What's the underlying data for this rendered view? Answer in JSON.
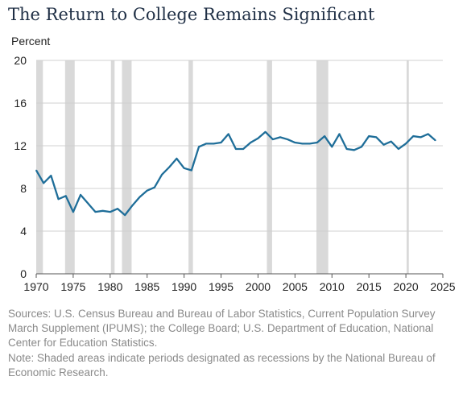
{
  "chart_data": {
    "type": "line",
    "title": "The Return to College Remains Significant",
    "ylabel": "Percent",
    "xlabel": "",
    "xlim": [
      1970,
      2025
    ],
    "ylim": [
      0,
      20
    ],
    "xticks": [
      1970,
      1975,
      1980,
      1985,
      1990,
      1995,
      2000,
      2005,
      2010,
      2015,
      2020,
      2025
    ],
    "yticks": [
      0,
      4,
      8,
      12,
      16,
      20
    ],
    "grid": "horizontal",
    "line_color": "#1f6e99",
    "recession_color": "#d9d9d9",
    "recessions": [
      [
        1970,
        1970.9
      ],
      [
        1973.9,
        1975.2
      ],
      [
        1980.1,
        1980.6
      ],
      [
        1981.6,
        1982.9
      ],
      [
        1990.6,
        1991.2
      ],
      [
        2001.2,
        2001.9
      ],
      [
        2007.9,
        2009.5
      ],
      [
        2020.1,
        2020.4
      ]
    ],
    "series": [
      {
        "x": [
          1970,
          1971,
          1972,
          1973,
          1974,
          1975,
          1976,
          1977,
          1978,
          1979,
          1980,
          1981,
          1982,
          1983,
          1984,
          1985,
          1986,
          1987,
          1988,
          1989,
          1990,
          1991,
          1992,
          1993,
          1994,
          1995,
          1996,
          1997,
          1998,
          1999,
          2000,
          2001,
          2002,
          2003,
          2004,
          2005,
          2006,
          2007,
          2008,
          2009,
          2010,
          2011,
          2012,
          2013,
          2014,
          2015,
          2016,
          2017,
          2018,
          2019,
          2020,
          2021,
          2022,
          2023,
          2024
        ],
        "values": [
          9.7,
          8.5,
          9.2,
          7.0,
          7.3,
          5.8,
          7.4,
          6.6,
          5.8,
          5.9,
          5.8,
          6.1,
          5.5,
          6.4,
          7.2,
          7.8,
          8.1,
          9.3,
          10.0,
          10.8,
          9.9,
          9.7,
          11.9,
          12.2,
          12.2,
          12.3,
          13.1,
          11.7,
          11.7,
          12.3,
          12.7,
          13.3,
          12.6,
          12.8,
          12.6,
          12.3,
          12.2,
          12.2,
          12.3,
          12.9,
          11.9,
          13.1,
          11.7,
          11.6,
          11.9,
          12.9,
          12.8,
          12.1,
          12.4,
          11.7,
          12.2,
          12.9,
          12.8,
          13.1,
          12.5
        ]
      }
    ]
  },
  "notes": {
    "sources": "Sources: U.S. Census Bureau and Bureau of Labor Statistics, Current Population Survey March Supplement (IPUMS); the College Board; U.S. Department of Education, National Center for Education Statistics.",
    "note": "Note: Shaded areas indicate periods designated as recessions by the National Bureau of Economic Research."
  }
}
